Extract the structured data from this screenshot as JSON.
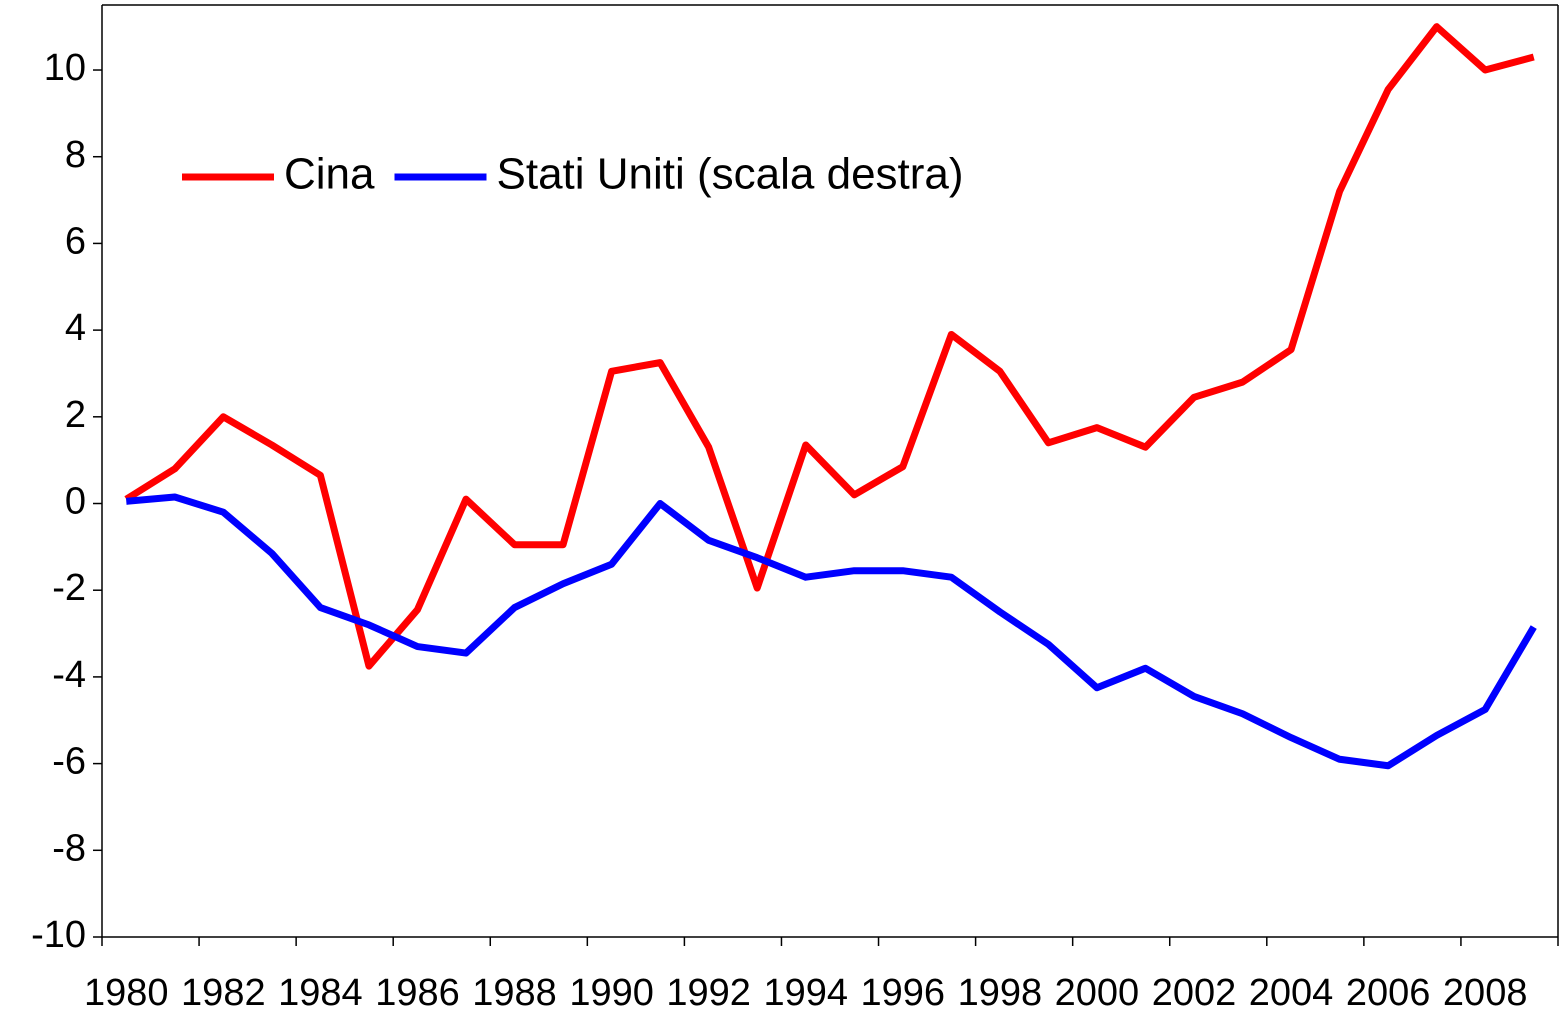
{
  "chart_data": {
    "type": "line",
    "categories": [
      "1980",
      null,
      "1982",
      null,
      "1984",
      null,
      "1986",
      null,
      "1988",
      null,
      "1990",
      null,
      "1992",
      null,
      "1994",
      null,
      "1996",
      null,
      "1998",
      null,
      "2000",
      null,
      "2002",
      null,
      "2004",
      null,
      "2006",
      null,
      "2008",
      null
    ],
    "series": [
      {
        "name": "Cina",
        "color": "#ff0000",
        "values": [
          0.1,
          0.8,
          2.0,
          1.35,
          0.65,
          -3.75,
          -2.45,
          0.1,
          -0.95,
          -0.95,
          3.05,
          3.25,
          1.3,
          -1.95,
          1.35,
          0.2,
          0.85,
          3.9,
          3.05,
          1.4,
          1.75,
          1.3,
          2.45,
          2.8,
          3.55,
          7.2,
          9.55,
          11.0,
          10.0,
          10.3
        ]
      },
      {
        "name": "Stati Uniti (scala destra)",
        "color": "#0000ff",
        "values": [
          0.05,
          0.15,
          -0.2,
          -1.15,
          -2.4,
          -2.8,
          -3.3,
          -3.45,
          -2.4,
          -1.85,
          -1.4,
          0.0,
          -0.85,
          -1.25,
          -1.7,
          -1.55,
          -1.55,
          -1.7,
          -2.5,
          -3.25,
          -4.25,
          -3.8,
          -4.45,
          -4.85,
          -5.4,
          -5.9,
          -6.05,
          -5.35,
          -4.75,
          -2.85
        ]
      }
    ],
    "ylim": [
      -10,
      11.5
    ],
    "yticks": [
      -10,
      -8,
      -6,
      -4,
      -2,
      0,
      2,
      4,
      6,
      8,
      10
    ],
    "legend": "top-left"
  }
}
